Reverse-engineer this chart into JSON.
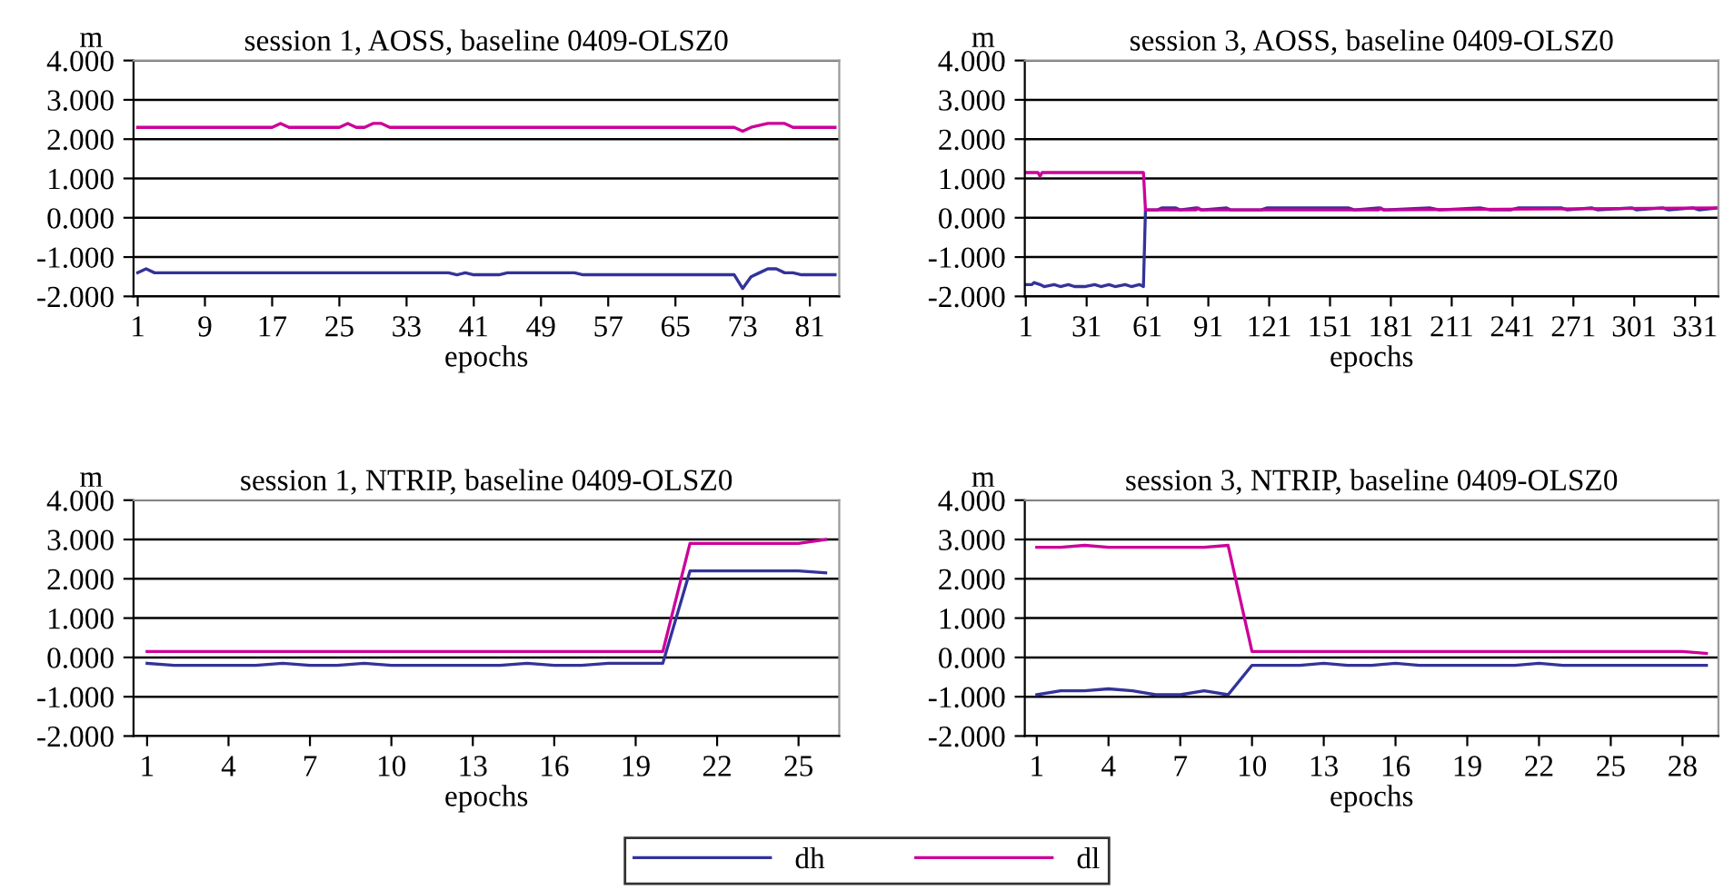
{
  "chart_data": [
    {
      "type": "line",
      "title": "session 1, AOSS, baseline 0409-OLSZ0",
      "xlabel": "epochs",
      "ylabel": "m",
      "xlim": [
        0.5,
        84.5
      ],
      "xticks": [
        1,
        9,
        17,
        25,
        33,
        41,
        49,
        57,
        65,
        73,
        81
      ],
      "ylim": [
        -2,
        4
      ],
      "yticks": [
        {
          "value": -2,
          "label": "-2.000"
        },
        {
          "value": -1,
          "label": "-1.000"
        },
        {
          "value": 0,
          "label": "0.000"
        },
        {
          "value": 1,
          "label": "1.000"
        },
        {
          "value": 2,
          "label": "2.000"
        },
        {
          "value": 3,
          "label": "3.000"
        },
        {
          "value": 4,
          "label": "4.000"
        }
      ],
      "grid": "y",
      "legend": "bottom",
      "marker": "none",
      "series": [
        {
          "name": "dh",
          "color": "#333399",
          "x": [
            1,
            2,
            3,
            38,
            39,
            40,
            41,
            44,
            45,
            53,
            54,
            72,
            73,
            74,
            75,
            76,
            77,
            78,
            79,
            80,
            84
          ],
          "values": [
            -1.4,
            -1.3,
            -1.4,
            -1.4,
            -1.45,
            -1.4,
            -1.45,
            -1.45,
            -1.4,
            -1.4,
            -1.45,
            -1.45,
            -1.8,
            -1.5,
            -1.4,
            -1.3,
            -1.3,
            -1.4,
            -1.4,
            -1.45,
            -1.45
          ]
        },
        {
          "name": "dl",
          "color": "#cc0099",
          "x": [
            1,
            17,
            18,
            19,
            25,
            26,
            27,
            28,
            29,
            30,
            31,
            72,
            73,
            74,
            76,
            78,
            79,
            84
          ],
          "values": [
            2.3,
            2.3,
            2.4,
            2.3,
            2.3,
            2.4,
            2.3,
            2.3,
            2.4,
            2.4,
            2.3,
            2.3,
            2.2,
            2.3,
            2.4,
            2.4,
            2.3,
            2.3
          ]
        }
      ]
    },
    {
      "type": "line",
      "title": "session 3, AOSS, baseline 0409-OLSZ0",
      "xlabel": "epochs",
      "ylabel": "m",
      "xlim": [
        0.5,
        342.5
      ],
      "xticks": [
        1,
        31,
        61,
        91,
        121,
        151,
        181,
        211,
        241,
        271,
        301,
        331
      ],
      "ylim": [
        -2,
        4
      ],
      "yticks": [
        {
          "value": -2,
          "label": "-2.000"
        },
        {
          "value": -1,
          "label": "-1.000"
        },
        {
          "value": 0,
          "label": "0.000"
        },
        {
          "value": 1,
          "label": "1.000"
        },
        {
          "value": 2,
          "label": "2.000"
        },
        {
          "value": 3,
          "label": "3.000"
        },
        {
          "value": 4,
          "label": "4.000"
        }
      ],
      "grid": "y",
      "legend": "bottom",
      "marker": "none",
      "series": [
        {
          "name": "dh",
          "color": "#333399",
          "x": [
            1,
            4,
            5,
            8,
            10,
            15,
            18,
            22,
            25,
            30,
            35,
            38,
            42,
            45,
            50,
            53,
            57,
            59,
            60,
            66,
            68,
            75,
            77,
            85,
            88,
            100,
            102,
            117,
            120,
            160,
            163,
            175,
            178,
            200,
            205,
            225,
            230,
            240,
            244,
            265,
            268,
            280,
            283,
            300,
            302,
            315,
            318,
            330,
            333,
            342
          ],
          "values": [
            -1.7,
            -1.7,
            -1.65,
            -1.7,
            -1.75,
            -1.7,
            -1.75,
            -1.7,
            -1.75,
            -1.75,
            -1.7,
            -1.75,
            -1.7,
            -1.75,
            -1.7,
            -1.75,
            -1.7,
            -1.75,
            0.2,
            0.2,
            0.25,
            0.25,
            0.2,
            0.25,
            0.2,
            0.25,
            0.2,
            0.2,
            0.25,
            0.25,
            0.2,
            0.25,
            0.2,
            0.25,
            0.2,
            0.25,
            0.2,
            0.2,
            0.25,
            0.25,
            0.2,
            0.25,
            0.2,
            0.25,
            0.2,
            0.25,
            0.2,
            0.25,
            0.2,
            0.25
          ]
        },
        {
          "name": "dl",
          "color": "#cc0099",
          "x": [
            1,
            7,
            8,
            9,
            59,
            60,
            85,
            86,
            87,
            175,
            176,
            177,
            342
          ],
          "values": [
            1.15,
            1.15,
            1.05,
            1.15,
            1.15,
            0.2,
            0.2,
            0.25,
            0.2,
            0.2,
            0.25,
            0.2,
            0.25
          ]
        }
      ]
    },
    {
      "type": "line",
      "title": "session 1, NTRIP, baseline 0409-OLSZ0",
      "xlabel": "epochs",
      "ylabel": "m",
      "xlim": [
        0.5,
        26.5
      ],
      "xticks": [
        1,
        4,
        7,
        10,
        13,
        16,
        19,
        22,
        25
      ],
      "ylim": [
        -2,
        4
      ],
      "yticks": [
        {
          "value": -2,
          "label": "-2.000"
        },
        {
          "value": -1,
          "label": "-1.000"
        },
        {
          "value": 0,
          "label": "0.000"
        },
        {
          "value": 1,
          "label": "1.000"
        },
        {
          "value": 2,
          "label": "2.000"
        },
        {
          "value": 3,
          "label": "3.000"
        },
        {
          "value": 4,
          "label": "4.000"
        }
      ],
      "grid": "y",
      "legend": "bottom",
      "marker": "none",
      "series": [
        {
          "name": "dh",
          "color": "#333399",
          "x": [
            1,
            2,
            3,
            4,
            5,
            6,
            7,
            8,
            9,
            10,
            11,
            12,
            13,
            14,
            15,
            16,
            17,
            18,
            19,
            20,
            21,
            22,
            23,
            24,
            25,
            26
          ],
          "values": [
            -0.15,
            -0.2,
            -0.2,
            -0.2,
            -0.2,
            -0.15,
            -0.2,
            -0.2,
            -0.15,
            -0.2,
            -0.2,
            -0.2,
            -0.2,
            -0.2,
            -0.15,
            -0.2,
            -0.2,
            -0.15,
            -0.15,
            -0.15,
            2.2,
            2.2,
            2.2,
            2.2,
            2.2,
            2.15
          ]
        },
        {
          "name": "dl",
          "color": "#cc0099",
          "x": [
            1,
            2,
            3,
            4,
            5,
            6,
            7,
            8,
            9,
            10,
            11,
            12,
            13,
            14,
            15,
            16,
            17,
            18,
            19,
            20,
            21,
            22,
            23,
            24,
            25,
            26
          ],
          "values": [
            0.15,
            0.15,
            0.15,
            0.15,
            0.15,
            0.15,
            0.15,
            0.15,
            0.15,
            0.15,
            0.15,
            0.15,
            0.15,
            0.15,
            0.15,
            0.15,
            0.15,
            0.15,
            0.15,
            0.15,
            2.9,
            2.9,
            2.9,
            2.9,
            2.9,
            3.0
          ]
        }
      ]
    },
    {
      "type": "line",
      "title": "session 3, NTRIP, baseline 0409-OLSZ0",
      "xlabel": "epochs",
      "ylabel": "m",
      "xlim": [
        0.5,
        29.5
      ],
      "xticks": [
        1,
        4,
        7,
        10,
        13,
        16,
        19,
        22,
        25,
        28
      ],
      "ylim": [
        -2,
        4
      ],
      "yticks": [
        {
          "value": -2,
          "label": "-2.000"
        },
        {
          "value": -1,
          "label": "-1.000"
        },
        {
          "value": 0,
          "label": "0.000"
        },
        {
          "value": 1,
          "label": "1.000"
        },
        {
          "value": 2,
          "label": "2.000"
        },
        {
          "value": 3,
          "label": "3.000"
        },
        {
          "value": 4,
          "label": "4.000"
        }
      ],
      "grid": "y",
      "legend": "bottom",
      "marker": "none",
      "series": [
        {
          "name": "dh",
          "color": "#333399",
          "x": [
            1,
            2,
            3,
            4,
            5,
            6,
            7,
            8,
            9,
            10,
            11,
            12,
            13,
            14,
            15,
            16,
            17,
            18,
            19,
            20,
            21,
            22,
            23,
            24,
            25,
            26,
            27,
            28,
            29
          ],
          "values": [
            -0.95,
            -0.85,
            -0.85,
            -0.8,
            -0.85,
            -0.95,
            -0.95,
            -0.85,
            -0.95,
            -0.2,
            -0.2,
            -0.2,
            -0.15,
            -0.2,
            -0.2,
            -0.15,
            -0.2,
            -0.2,
            -0.2,
            -0.2,
            -0.2,
            -0.15,
            -0.2,
            -0.2,
            -0.2,
            -0.2,
            -0.2,
            -0.2,
            -0.2
          ]
        },
        {
          "name": "dl",
          "color": "#cc0099",
          "x": [
            1,
            2,
            3,
            4,
            5,
            6,
            7,
            8,
            9,
            10,
            11,
            12,
            13,
            14,
            15,
            16,
            17,
            18,
            19,
            20,
            21,
            22,
            23,
            24,
            25,
            26,
            27,
            28,
            29
          ],
          "values": [
            2.8,
            2.8,
            2.85,
            2.8,
            2.8,
            2.8,
            2.8,
            2.8,
            2.85,
            0.15,
            0.15,
            0.15,
            0.15,
            0.15,
            0.15,
            0.15,
            0.15,
            0.15,
            0.15,
            0.15,
            0.15,
            0.15,
            0.15,
            0.15,
            0.15,
            0.15,
            0.15,
            0.15,
            0.1
          ]
        }
      ]
    }
  ]
}
